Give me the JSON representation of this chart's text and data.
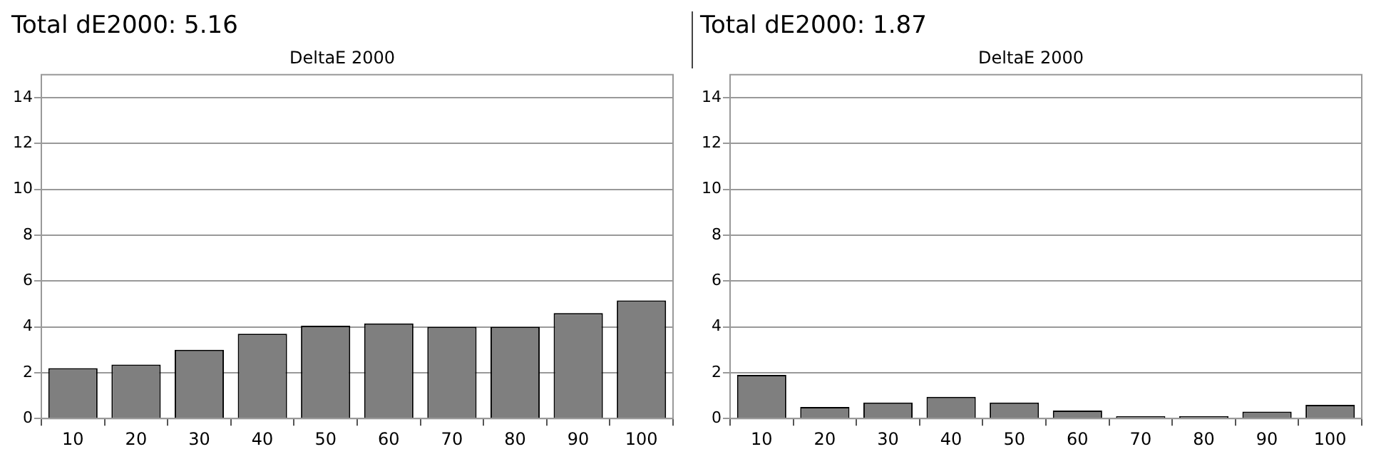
{
  "chart_data": [
    {
      "type": "bar",
      "title": "Total dE2000: 5.16",
      "subtitle": "DeltaE 2000",
      "categories": [
        "10",
        "20",
        "30",
        "40",
        "50",
        "60",
        "70",
        "80",
        "90",
        "100"
      ],
      "values": [
        2.2,
        2.35,
        3.0,
        3.7,
        4.05,
        4.15,
        4.0,
        4.0,
        4.6,
        5.15
      ],
      "color": "#7f7f7f",
      "ylim": [
        0,
        15
      ],
      "yticks": [
        0,
        2,
        4,
        6,
        8,
        10,
        12,
        14
      ],
      "grid": "y",
      "legend": false
    },
    {
      "type": "bar",
      "title": "Total dE2000: 1.87",
      "subtitle": "DeltaE 2000",
      "categories": [
        "10",
        "20",
        "30",
        "40",
        "50",
        "60",
        "70",
        "80",
        "90",
        "100"
      ],
      "values": [
        1.9,
        0.5,
        0.7,
        0.95,
        0.7,
        0.35,
        0.1,
        0.1,
        0.3,
        0.6
      ],
      "color": "#7f7f7f",
      "ylim": [
        0,
        15
      ],
      "yticks": [
        0,
        2,
        4,
        6,
        8,
        10,
        12,
        14
      ],
      "grid": "y",
      "legend": false
    }
  ]
}
